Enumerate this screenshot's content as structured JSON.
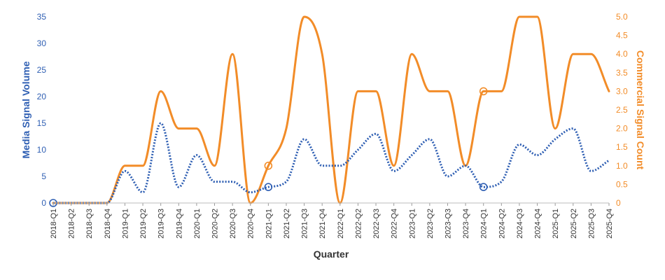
{
  "chart_data": {
    "type": "line",
    "xlabel": "Quarter",
    "ylabel_left": "Media Signal Volume",
    "ylabel_right": "Commercial Signal Count",
    "y_left_lim": [
      0,
      35
    ],
    "y_left_ticks": [
      0,
      5,
      10,
      15,
      20,
      25,
      30,
      35
    ],
    "y_right_lim": [
      0,
      5.0
    ],
    "y_right_ticks": [
      "0",
      "0.5",
      "1.0",
      "1.5",
      "2.0",
      "2.5",
      "3.0",
      "3.5",
      "4.0",
      "4.5",
      "5.0"
    ],
    "categories": [
      "2018-Q1",
      "2018-Q2",
      "2018-Q3",
      "2018-Q4",
      "2019-Q1",
      "2019-Q2",
      "2019-Q3",
      "2019-Q4",
      "2020-Q1",
      "2020-Q2",
      "2020-Q3",
      "2020-Q4",
      "2021-Q1",
      "2021-Q2",
      "2021-Q3",
      "2021-Q4",
      "2022-Q1",
      "2022-Q2",
      "2022-Q3",
      "2022-Q4",
      "2023-Q1",
      "2023-Q2",
      "2023-Q3",
      "2023-Q4",
      "2024-Q1",
      "2024-Q2",
      "2024-Q3",
      "2024-Q4",
      "2025-Q1",
      "2025-Q2",
      "2025-Q3",
      "2025-Q4"
    ],
    "series": [
      {
        "axis": "left",
        "style": "dotted",
        "color": "#2f5fb3",
        "values": [
          0,
          0,
          0,
          0,
          6,
          2,
          15,
          3,
          9,
          4,
          4,
          2,
          3,
          4,
          12,
          7,
          7,
          10,
          13,
          6,
          9,
          12,
          5,
          7,
          3,
          4,
          11,
          9,
          12,
          14,
          6,
          8
        ],
        "markers": [
          0,
          12,
          24
        ]
      },
      {
        "axis": "right",
        "style": "solid",
        "color": "#f28c28",
        "values": [
          0,
          0,
          0,
          0,
          1,
          1,
          3,
          2,
          2,
          1,
          4,
          0,
          1,
          2,
          5,
          4,
          0,
          3,
          3,
          1,
          4,
          3,
          3,
          1,
          3,
          3,
          5,
          5,
          2,
          4,
          4,
          3
        ],
        "markers": [
          12,
          24
        ]
      }
    ]
  }
}
